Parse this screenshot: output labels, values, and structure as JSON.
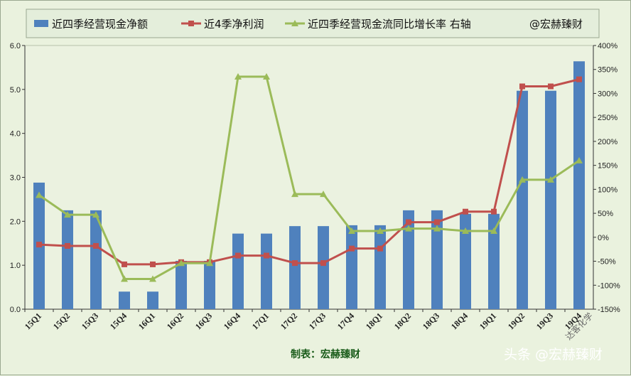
{
  "chart_data": {
    "type": "bar",
    "categories": [
      "15Q1",
      "15Q2",
      "15Q3",
      "15Q4",
      "16Q1",
      "16Q2",
      "16Q3",
      "16Q4",
      "17Q1",
      "17Q2",
      "17Q3",
      "17Q4",
      "18Q1",
      "18Q2",
      "18Q3",
      "18Q4",
      "19Q1",
      "19Q2",
      "19Q3",
      "19Q4"
    ],
    "series": [
      {
        "name": "近四季经营现金净额",
        "kind": "bar",
        "axis": "left",
        "color": "#4f81bd",
        "values": [
          2.88,
          2.25,
          2.25,
          0.4,
          0.4,
          1.1,
          1.1,
          1.72,
          1.72,
          1.89,
          1.89,
          1.91,
          1.91,
          2.25,
          2.25,
          2.17,
          2.17,
          4.97,
          4.97,
          5.64
        ]
      },
      {
        "name": "近4季净利润",
        "kind": "line",
        "axis": "left",
        "color": "#c0504d",
        "marker": "square",
        "values": [
          1.47,
          1.44,
          1.44,
          1.02,
          1.02,
          1.07,
          1.07,
          1.22,
          1.22,
          1.05,
          1.05,
          1.38,
          1.38,
          1.98,
          1.98,
          2.22,
          2.22,
          5.07,
          5.07,
          5.23
        ]
      },
      {
        "name": "近四季经营现金流同比增长率 右轴",
        "kind": "line",
        "axis": "right",
        "color": "#9bbb59",
        "marker": "triangle",
        "values": [
          88,
          47,
          47,
          -87,
          -87,
          -54,
          -54,
          335,
          335,
          90,
          90,
          13,
          13,
          18,
          18,
          13,
          13,
          120,
          120,
          160
        ]
      }
    ],
    "y_left": {
      "min": 0,
      "max": 6,
      "ticks": [
        "0.0",
        "1.0",
        "2.0",
        "3.0",
        "4.0",
        "5.0",
        "6.0"
      ]
    },
    "y_right": {
      "min": -150,
      "max": 400,
      "ticks": [
        "-150%",
        "-100%",
        "-50%",
        "0%",
        "50%",
        "100%",
        "150%",
        "200%",
        "250%",
        "300%",
        "350%",
        "400%"
      ]
    },
    "grid": false,
    "legend": {
      "placement": "top",
      "extra_text": "@宏赫臻财"
    }
  },
  "credit": "制表：宏赫臻财",
  "watermark": "头条 @宏赫臻财",
  "stamp": "达客化学"
}
